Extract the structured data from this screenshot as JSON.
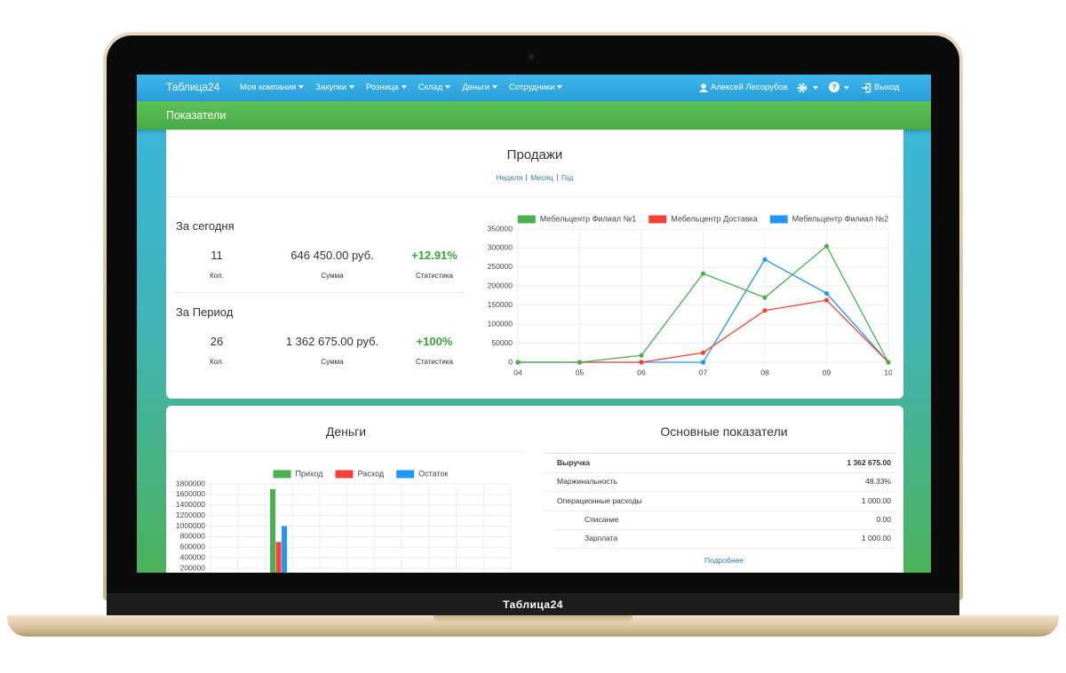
{
  "laptop_label": "Таблица24",
  "navbar": {
    "brand": "Таблица24",
    "menu": [
      "Моя компания",
      "Закупки",
      "Розница",
      "Склад",
      "Деньги",
      "Сотрудники"
    ],
    "user": "Алексей Лесорубов",
    "help": "?",
    "logout": "Выход"
  },
  "page_title": "Показатели",
  "sales": {
    "title": "Продажи",
    "periods": [
      "Неделя",
      "Месяц",
      "Год"
    ],
    "today": {
      "heading": "За сегодня",
      "stats": [
        {
          "value": "11",
          "label": "Кол."
        },
        {
          "value": "646 450.00 руб.",
          "label": "Сумма"
        },
        {
          "value": "+12.91%",
          "label": "Статистика"
        }
      ]
    },
    "period": {
      "heading": "За Период",
      "stats": [
        {
          "value": "26",
          "label": "Кол."
        },
        {
          "value": "1 362 675.00 руб.",
          "label": "Сумма"
        },
        {
          "value": "+100%",
          "label": "Статистика"
        }
      ]
    },
    "chart": {
      "type": "line",
      "categories": [
        "04",
        "05",
        "06",
        "07",
        "08",
        "09",
        "10"
      ],
      "series": [
        {
          "name": "Мебельцентр Филиал №1",
          "color": "#4caf50",
          "values": [
            0,
            0,
            18000,
            233000,
            170000,
            305000,
            0
          ]
        },
        {
          "name": "Мебельцентр Доставка",
          "color": "#f44336",
          "values": [
            0,
            0,
            0,
            25000,
            136000,
            163000,
            0
          ]
        },
        {
          "name": "Мебельцентр Филиал №2",
          "color": "#2196f3",
          "values": [
            0,
            0,
            0,
            0,
            270000,
            181000,
            0
          ]
        }
      ],
      "ylim": [
        0,
        350000
      ],
      "yticks": [
        0,
        50000,
        100000,
        150000,
        200000,
        250000,
        300000,
        350000
      ],
      "grid": true
    }
  },
  "money": {
    "title": "Деньги",
    "chart": {
      "type": "bar",
      "categories": [
        null,
        null,
        null,
        null,
        null,
        null,
        null,
        null,
        null,
        null,
        null
      ],
      "series": [
        {
          "name": "Приход",
          "color": "#4caf50",
          "values": [
            0,
            0,
            1700000,
            0,
            0,
            0,
            0,
            0,
            0,
            0,
            0
          ]
        },
        {
          "name": "Расход",
          "color": "#f44336",
          "values": [
            0,
            0,
            700000,
            0,
            0,
            0,
            0,
            0,
            0,
            0,
            0
          ]
        },
        {
          "name": "Остаток",
          "color": "#2196f3",
          "values": [
            0,
            0,
            1000000,
            0,
            0,
            0,
            0,
            0,
            0,
            0,
            0
          ]
        }
      ],
      "ylim": [
        0,
        1800000
      ],
      "yticks": [
        200000,
        400000,
        600000,
        800000,
        1000000,
        1200000,
        1400000,
        1600000,
        1800000
      ],
      "grid": true
    }
  },
  "indicators": {
    "title": "Основные показатели",
    "rows": [
      {
        "label": "Выручка",
        "value": "1 362 675.00"
      },
      {
        "label": "Маржинальность",
        "value": "48.33%"
      },
      {
        "label": "Операционные расходы",
        "value": "1 000.00",
        "items": [
          {
            "label": "Списание",
            "value": "0.00"
          },
          {
            "label": "Зарплата",
            "value": "1 000.00"
          }
        ]
      }
    ],
    "more": "Подробнее"
  }
}
